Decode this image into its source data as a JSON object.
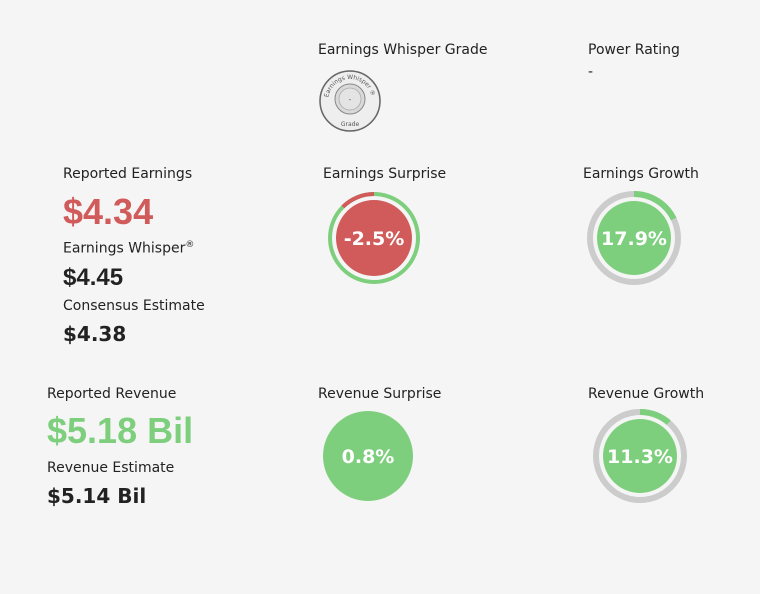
{
  "grade": {
    "title": "Earnings Whisper Grade",
    "badge_top_text": "Earnings Whisper ®",
    "badge_bottom_text": "Grade",
    "value": "-"
  },
  "power_rating": {
    "title": "Power Rating",
    "value": "-"
  },
  "earnings": {
    "reported_label": "Reported Earnings",
    "reported_value": "$4.34",
    "whisper_label": "Earnings Whisper",
    "whisper_mark": "®",
    "whisper_value": "$4.45",
    "consensus_label": "Consensus Estimate",
    "consensus_value": "$4.38"
  },
  "earnings_surprise": {
    "title": "Earnings Surprise",
    "value": "-2.5%",
    "percent": -2.5,
    "fill_color": "#d15b5b",
    "ring_color": "#7dcf7d"
  },
  "earnings_growth": {
    "title": "Earnings Growth",
    "value": "17.9%",
    "percent": 17.9,
    "fill_color": "#7dcf7d",
    "ring_color": "#7dcf7d",
    "track_color": "#cccccc"
  },
  "revenue": {
    "reported_label": "Reported Revenue",
    "reported_value": "$5.18 Bil",
    "estimate_label": "Revenue Estimate",
    "estimate_value": "$5.14 Bil"
  },
  "revenue_surprise": {
    "title": "Revenue Surprise",
    "value": "0.8%",
    "percent": 0.8,
    "fill_color": "#7dcf7d"
  },
  "revenue_growth": {
    "title": "Revenue Growth",
    "value": "11.3%",
    "percent": 11.3,
    "fill_color": "#7dcf7d",
    "ring_color": "#7dcf7d",
    "track_color": "#cccccc"
  }
}
